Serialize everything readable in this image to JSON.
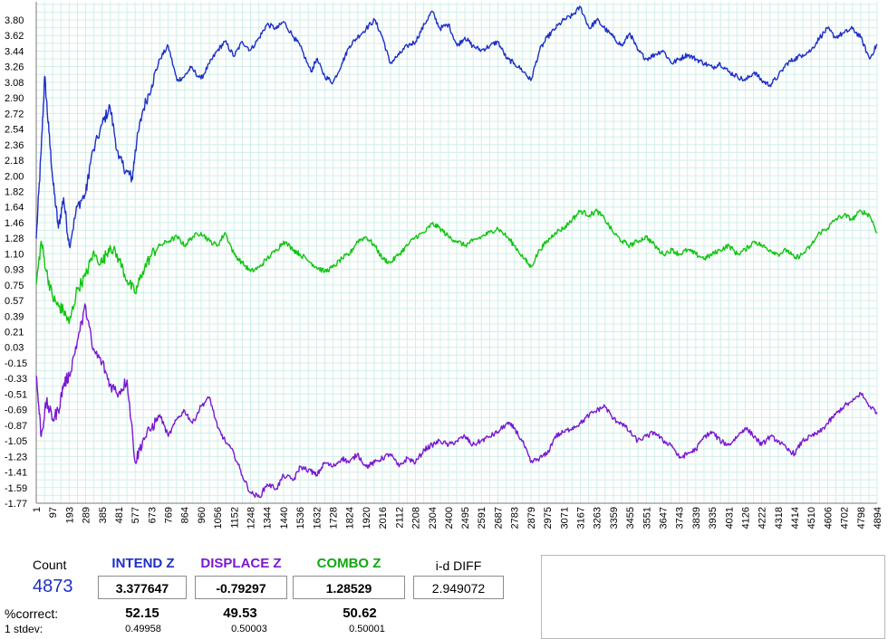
{
  "chart_data": {
    "type": "line",
    "y_ticks": [
      "3.80",
      "3.62",
      "3.44",
      "3.26",
      "3.08",
      "2.90",
      "2.72",
      "2.54",
      "2.36",
      "2.18",
      "2.00",
      "1.82",
      "1.64",
      "1.46",
      "1.28",
      "1.10",
      "0.93",
      "0.75",
      "0.57",
      "0.39",
      "0.21",
      "0.03",
      "-0.15",
      "-0.33",
      "-0.51",
      "-0.69",
      "-0.87",
      "-1.05",
      "-1.23",
      "-1.41",
      "-1.59",
      "-1.77"
    ],
    "x_ticks": [
      "1",
      "97",
      "193",
      "289",
      "385",
      "481",
      "577",
      "673",
      "769",
      "864",
      "960",
      "1056",
      "1152",
      "1248",
      "1344",
      "1440",
      "1536",
      "1632",
      "1728",
      "1824",
      "1920",
      "2016",
      "2112",
      "2208",
      "2304",
      "2400",
      "2495",
      "2591",
      "2687",
      "2783",
      "2879",
      "2975",
      "3071",
      "3167",
      "3263",
      "3359",
      "3455",
      "3551",
      "3647",
      "3743",
      "3839",
      "3935",
      "4031",
      "4126",
      "4222",
      "4318",
      "4414",
      "4510",
      "4606",
      "4702",
      "4798",
      "4894"
    ],
    "ylim": [
      -1.77,
      3.98
    ],
    "xlim": [
      1,
      4894
    ],
    "grid": true,
    "series": [
      {
        "color": "#1f2fc8",
        "x": [
          1,
          30,
          50,
          75,
          100,
          130,
          160,
          193,
          240,
          289,
          320,
          385,
          430,
          481,
          530,
          560,
          577,
          620,
          673,
          720,
          769,
          820,
          864,
          900,
          960,
          1010,
          1056,
          1100,
          1152,
          1200,
          1248,
          1300,
          1344,
          1400,
          1440,
          1500,
          1536,
          1600,
          1632,
          1680,
          1728,
          1780,
          1824,
          1870,
          1920,
          1970,
          2016,
          2060,
          2112,
          2160,
          2208,
          2260,
          2304,
          2350,
          2400,
          2450,
          2495,
          2540,
          2591,
          2640,
          2687,
          2740,
          2783,
          2840,
          2879,
          2930,
          2975,
          3020,
          3071,
          3120,
          3167,
          3220,
          3263,
          3310,
          3359,
          3410,
          3455,
          3500,
          3551,
          3600,
          3647,
          3700,
          3743,
          3790,
          3839,
          3890,
          3935,
          3980,
          4031,
          4080,
          4126,
          4180,
          4222,
          4270,
          4318,
          4370,
          4414,
          4460,
          4510,
          4560,
          4606,
          4650,
          4702,
          4750,
          4798,
          4850,
          4894
        ],
        "y": [
          1.28,
          2.3,
          3.15,
          2.5,
          1.9,
          1.4,
          1.75,
          1.2,
          1.65,
          1.8,
          2.2,
          2.6,
          2.8,
          2.2,
          2.05,
          1.97,
          2.3,
          2.75,
          3.05,
          3.35,
          3.5,
          3.1,
          3.15,
          3.25,
          3.12,
          3.3,
          3.45,
          3.55,
          3.38,
          3.55,
          3.45,
          3.6,
          3.75,
          3.7,
          3.78,
          3.6,
          3.5,
          3.2,
          3.35,
          3.15,
          3.08,
          3.3,
          3.5,
          3.6,
          3.7,
          3.8,
          3.6,
          3.3,
          3.4,
          3.5,
          3.55,
          3.75,
          3.9,
          3.7,
          3.75,
          3.5,
          3.6,
          3.5,
          3.45,
          3.5,
          3.55,
          3.35,
          3.3,
          3.2,
          3.1,
          3.45,
          3.6,
          3.7,
          3.8,
          3.85,
          3.95,
          3.7,
          3.8,
          3.7,
          3.6,
          3.5,
          3.65,
          3.45,
          3.35,
          3.4,
          3.45,
          3.3,
          3.35,
          3.4,
          3.35,
          3.3,
          3.25,
          3.3,
          3.2,
          3.15,
          3.1,
          3.2,
          3.1,
          3.05,
          3.15,
          3.3,
          3.35,
          3.4,
          3.45,
          3.6,
          3.7,
          3.6,
          3.65,
          3.7,
          3.6,
          3.35,
          3.52
        ]
      },
      {
        "color": "#11c411",
        "x": [
          1,
          30,
          60,
          97,
          130,
          160,
          193,
          240,
          289,
          330,
          385,
          430,
          481,
          530,
          577,
          620,
          673,
          720,
          769,
          820,
          864,
          910,
          960,
          1010,
          1056,
          1100,
          1152,
          1200,
          1248,
          1300,
          1344,
          1400,
          1440,
          1500,
          1536,
          1600,
          1632,
          1680,
          1728,
          1780,
          1824,
          1870,
          1920,
          1970,
          2016,
          2060,
          2112,
          2160,
          2208,
          2260,
          2304,
          2350,
          2400,
          2450,
          2495,
          2540,
          2591,
          2640,
          2687,
          2740,
          2783,
          2840,
          2879,
          2930,
          2975,
          3020,
          3071,
          3120,
          3167,
          3220,
          3263,
          3310,
          3359,
          3410,
          3455,
          3500,
          3551,
          3600,
          3647,
          3700,
          3743,
          3790,
          3839,
          3890,
          3935,
          3980,
          4031,
          4080,
          4126,
          4180,
          4222,
          4270,
          4318,
          4370,
          4414,
          4460,
          4510,
          4560,
          4606,
          4650,
          4702,
          4750,
          4798,
          4850,
          4894
        ],
        "y": [
          0.75,
          1.25,
          0.9,
          0.6,
          0.5,
          0.45,
          0.3,
          0.7,
          0.85,
          1.1,
          1.0,
          1.2,
          1.05,
          0.8,
          0.65,
          0.9,
          1.1,
          1.2,
          1.25,
          1.3,
          1.2,
          1.3,
          1.35,
          1.25,
          1.2,
          1.35,
          1.1,
          1.0,
          0.9,
          0.95,
          1.05,
          1.15,
          1.25,
          1.15,
          1.1,
          1.0,
          0.95,
          0.9,
          0.95,
          1.05,
          1.1,
          1.25,
          1.3,
          1.2,
          1.05,
          1.0,
          1.1,
          1.2,
          1.3,
          1.35,
          1.45,
          1.4,
          1.3,
          1.25,
          1.2,
          1.25,
          1.3,
          1.35,
          1.4,
          1.3,
          1.2,
          1.05,
          0.95,
          1.15,
          1.25,
          1.35,
          1.4,
          1.5,
          1.6,
          1.55,
          1.6,
          1.5,
          1.35,
          1.25,
          1.2,
          1.25,
          1.3,
          1.2,
          1.1,
          1.15,
          1.1,
          1.15,
          1.1,
          1.05,
          1.1,
          1.15,
          1.2,
          1.1,
          1.15,
          1.25,
          1.2,
          1.15,
          1.1,
          1.15,
          1.05,
          1.1,
          1.2,
          1.35,
          1.4,
          1.5,
          1.55,
          1.5,
          1.6,
          1.55,
          1.35
        ]
      },
      {
        "color": "#7a18d2",
        "x": [
          1,
          30,
          60,
          97,
          130,
          160,
          193,
          240,
          289,
          330,
          385,
          430,
          481,
          530,
          577,
          620,
          673,
          720,
          769,
          820,
          864,
          910,
          960,
          1010,
          1056,
          1100,
          1152,
          1200,
          1248,
          1300,
          1344,
          1400,
          1440,
          1500,
          1536,
          1600,
          1632,
          1680,
          1728,
          1780,
          1824,
          1870,
          1920,
          1970,
          2016,
          2060,
          2112,
          2160,
          2208,
          2260,
          2304,
          2350,
          2400,
          2450,
          2495,
          2540,
          2591,
          2640,
          2687,
          2740,
          2783,
          2840,
          2879,
          2930,
          2975,
          3020,
          3071,
          3120,
          3167,
          3220,
          3263,
          3310,
          3359,
          3410,
          3455,
          3500,
          3551,
          3600,
          3647,
          3700,
          3743,
          3790,
          3839,
          3890,
          3935,
          3980,
          4031,
          4080,
          4126,
          4180,
          4222,
          4270,
          4318,
          4370,
          4414,
          4460,
          4510,
          4560,
          4606,
          4650,
          4702,
          4750,
          4798,
          4850,
          4894
        ],
        "y": [
          -0.3,
          -1.0,
          -0.6,
          -0.8,
          -0.7,
          -0.4,
          -0.3,
          0.1,
          0.5,
          0.0,
          -0.15,
          -0.4,
          -0.5,
          -0.35,
          -1.3,
          -1.05,
          -0.9,
          -0.75,
          -1.0,
          -0.8,
          -0.7,
          -0.85,
          -0.65,
          -0.55,
          -0.9,
          -1.05,
          -1.2,
          -1.45,
          -1.65,
          -1.7,
          -1.55,
          -1.6,
          -1.45,
          -1.5,
          -1.35,
          -1.4,
          -1.45,
          -1.3,
          -1.35,
          -1.25,
          -1.3,
          -1.2,
          -1.35,
          -1.3,
          -1.25,
          -1.2,
          -1.35,
          -1.25,
          -1.3,
          -1.15,
          -1.1,
          -1.05,
          -1.1,
          -1.05,
          -1.0,
          -1.1,
          -1.05,
          -1.0,
          -0.95,
          -0.85,
          -0.9,
          -1.1,
          -1.3,
          -1.25,
          -1.2,
          -1.0,
          -0.95,
          -0.9,
          -0.85,
          -0.75,
          -0.7,
          -0.65,
          -0.8,
          -0.85,
          -0.95,
          -1.05,
          -1.0,
          -0.95,
          -1.05,
          -1.1,
          -1.25,
          -1.2,
          -1.15,
          -1.0,
          -0.95,
          -1.05,
          -1.1,
          -1.0,
          -0.9,
          -1.0,
          -1.1,
          -1.0,
          -1.05,
          -1.15,
          -1.2,
          -1.05,
          -1.0,
          -0.95,
          -0.85,
          -0.75,
          -0.65,
          -0.6,
          -0.5,
          -0.65,
          -0.72
        ]
      }
    ]
  },
  "stats": {
    "count_label": "Count",
    "count_value": "4873",
    "intend_label": "INTEND Z",
    "intend_value": "3.377647",
    "displace_label": "DISPLACE Z",
    "displace_value": "-0.79297",
    "combo_label": "COMBO Z",
    "combo_value": "1.28529",
    "diff_label": "i-d DIFF",
    "diff_value": "2.949072",
    "pct_label": "%correct:",
    "pct_intend": "52.15",
    "pct_displace": "49.53",
    "pct_combo": "50.62",
    "stdev_label": "1 stdev:",
    "stdev_intend": "0.49958",
    "stdev_displace": "0.50003",
    "stdev_combo": "0.50001",
    "colors": {
      "intend": "#1f2fc8",
      "displace": "#7a18d2",
      "combo": "#11a811",
      "count": "#1f2fc8"
    }
  }
}
